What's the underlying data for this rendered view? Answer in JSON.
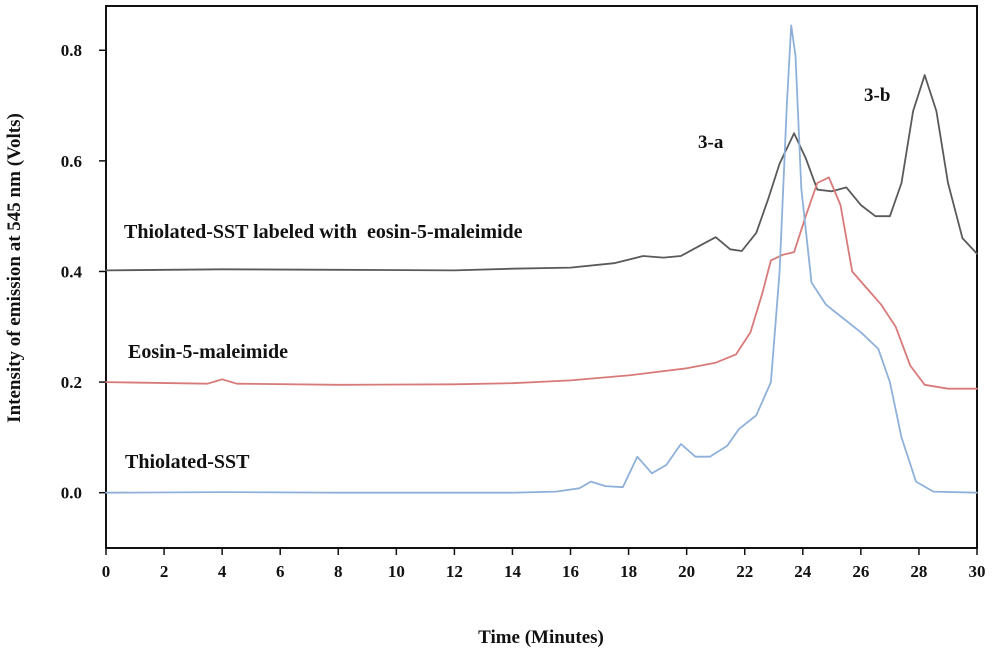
{
  "chart_data": {
    "type": "line",
    "title": "",
    "xlabel": "Time (Minutes)",
    "ylabel": "Intensity of emission at 545 nm (Volts)",
    "xlim": [
      0,
      30
    ],
    "ylim": [
      -0.1,
      0.88
    ],
    "x_ticks": [
      "0",
      "2",
      "4",
      "6",
      "8",
      "10",
      "12",
      "14",
      "16",
      "18",
      "20",
      "22",
      "24",
      "26",
      "28",
      "30"
    ],
    "y_ticks": [
      "0.0",
      "0.2",
      "0.4",
      "0.6",
      "0.8"
    ],
    "grid": false,
    "legend": "none",
    "annotations": [
      {
        "text": "Thiolated-SST labeled with  eosin-5-maleimide",
        "series": "black"
      },
      {
        "text": "Eosin-5-maleimide",
        "series": "red"
      },
      {
        "text": "Thiolated-SST",
        "series": "blue"
      },
      {
        "text": "3-a",
        "x": 23.6
      },
      {
        "text": "3-b",
        "x": 28.2
      }
    ],
    "series": [
      {
        "color": "#5a5a5a",
        "points": [
          [
            0,
            0.402
          ],
          [
            4,
            0.404
          ],
          [
            8,
            0.403
          ],
          [
            12,
            0.402
          ],
          [
            14,
            0.405
          ],
          [
            16,
            0.407
          ],
          [
            17.5,
            0.415
          ],
          [
            18.5,
            0.428
          ],
          [
            19.2,
            0.425
          ],
          [
            19.8,
            0.428
          ],
          [
            20.5,
            0.448
          ],
          [
            21,
            0.462
          ],
          [
            21.5,
            0.44
          ],
          [
            21.9,
            0.437
          ],
          [
            22.4,
            0.47
          ],
          [
            22.8,
            0.53
          ],
          [
            23.2,
            0.595
          ],
          [
            23.7,
            0.65
          ],
          [
            24.1,
            0.605
          ],
          [
            24.5,
            0.548
          ],
          [
            25,
            0.545
          ],
          [
            25.5,
            0.552
          ],
          [
            26,
            0.52
          ],
          [
            26.5,
            0.5
          ],
          [
            27,
            0.5
          ],
          [
            27.4,
            0.56
          ],
          [
            27.8,
            0.69
          ],
          [
            28.2,
            0.755
          ],
          [
            28.6,
            0.69
          ],
          [
            29,
            0.56
          ],
          [
            29.5,
            0.46
          ],
          [
            30,
            0.432
          ]
        ]
      },
      {
        "color": "#d97a7a",
        "points": [
          [
            0,
            0.2
          ],
          [
            3.5,
            0.197
          ],
          [
            4,
            0.205
          ],
          [
            4.5,
            0.197
          ],
          [
            8,
            0.195
          ],
          [
            12,
            0.196
          ],
          [
            14,
            0.198
          ],
          [
            16,
            0.203
          ],
          [
            18,
            0.212
          ],
          [
            20,
            0.225
          ],
          [
            21,
            0.235
          ],
          [
            21.7,
            0.25
          ],
          [
            22.2,
            0.29
          ],
          [
            22.6,
            0.36
          ],
          [
            22.9,
            0.42
          ],
          [
            23.3,
            0.43
          ],
          [
            23.7,
            0.435
          ],
          [
            24.1,
            0.5
          ],
          [
            24.5,
            0.56
          ],
          [
            24.9,
            0.57
          ],
          [
            25.3,
            0.52
          ],
          [
            25.7,
            0.4
          ],
          [
            26.2,
            0.37
          ],
          [
            26.7,
            0.34
          ],
          [
            27.2,
            0.3
          ],
          [
            27.7,
            0.23
          ],
          [
            28.2,
            0.195
          ],
          [
            29,
            0.188
          ],
          [
            30,
            0.188
          ]
        ]
      },
      {
        "color": "#8fb1d9",
        "points": [
          [
            0,
            0
          ],
          [
            4,
            0.001
          ],
          [
            8,
            0
          ],
          [
            12,
            0
          ],
          [
            14,
            0
          ],
          [
            15.5,
            0.002
          ],
          [
            16.3,
            0.008
          ],
          [
            16.7,
            0.02
          ],
          [
            17.2,
            0.012
          ],
          [
            17.8,
            0.01
          ],
          [
            18.3,
            0.065
          ],
          [
            18.8,
            0.035
          ],
          [
            19.3,
            0.05
          ],
          [
            19.8,
            0.088
          ],
          [
            20.3,
            0.065
          ],
          [
            20.8,
            0.065
          ],
          [
            21.4,
            0.085
          ],
          [
            21.8,
            0.115
          ],
          [
            22.4,
            0.14
          ],
          [
            22.9,
            0.2
          ],
          [
            23.2,
            0.4
          ],
          [
            23.45,
            0.7
          ],
          [
            23.6,
            0.845
          ],
          [
            23.75,
            0.79
          ],
          [
            23.95,
            0.55
          ],
          [
            24.3,
            0.38
          ],
          [
            24.8,
            0.34
          ],
          [
            25.4,
            0.315
          ],
          [
            26,
            0.29
          ],
          [
            26.6,
            0.26
          ],
          [
            27,
            0.2
          ],
          [
            27.4,
            0.1
          ],
          [
            27.9,
            0.02
          ],
          [
            28.5,
            0.002
          ],
          [
            30,
            0
          ]
        ]
      }
    ]
  }
}
